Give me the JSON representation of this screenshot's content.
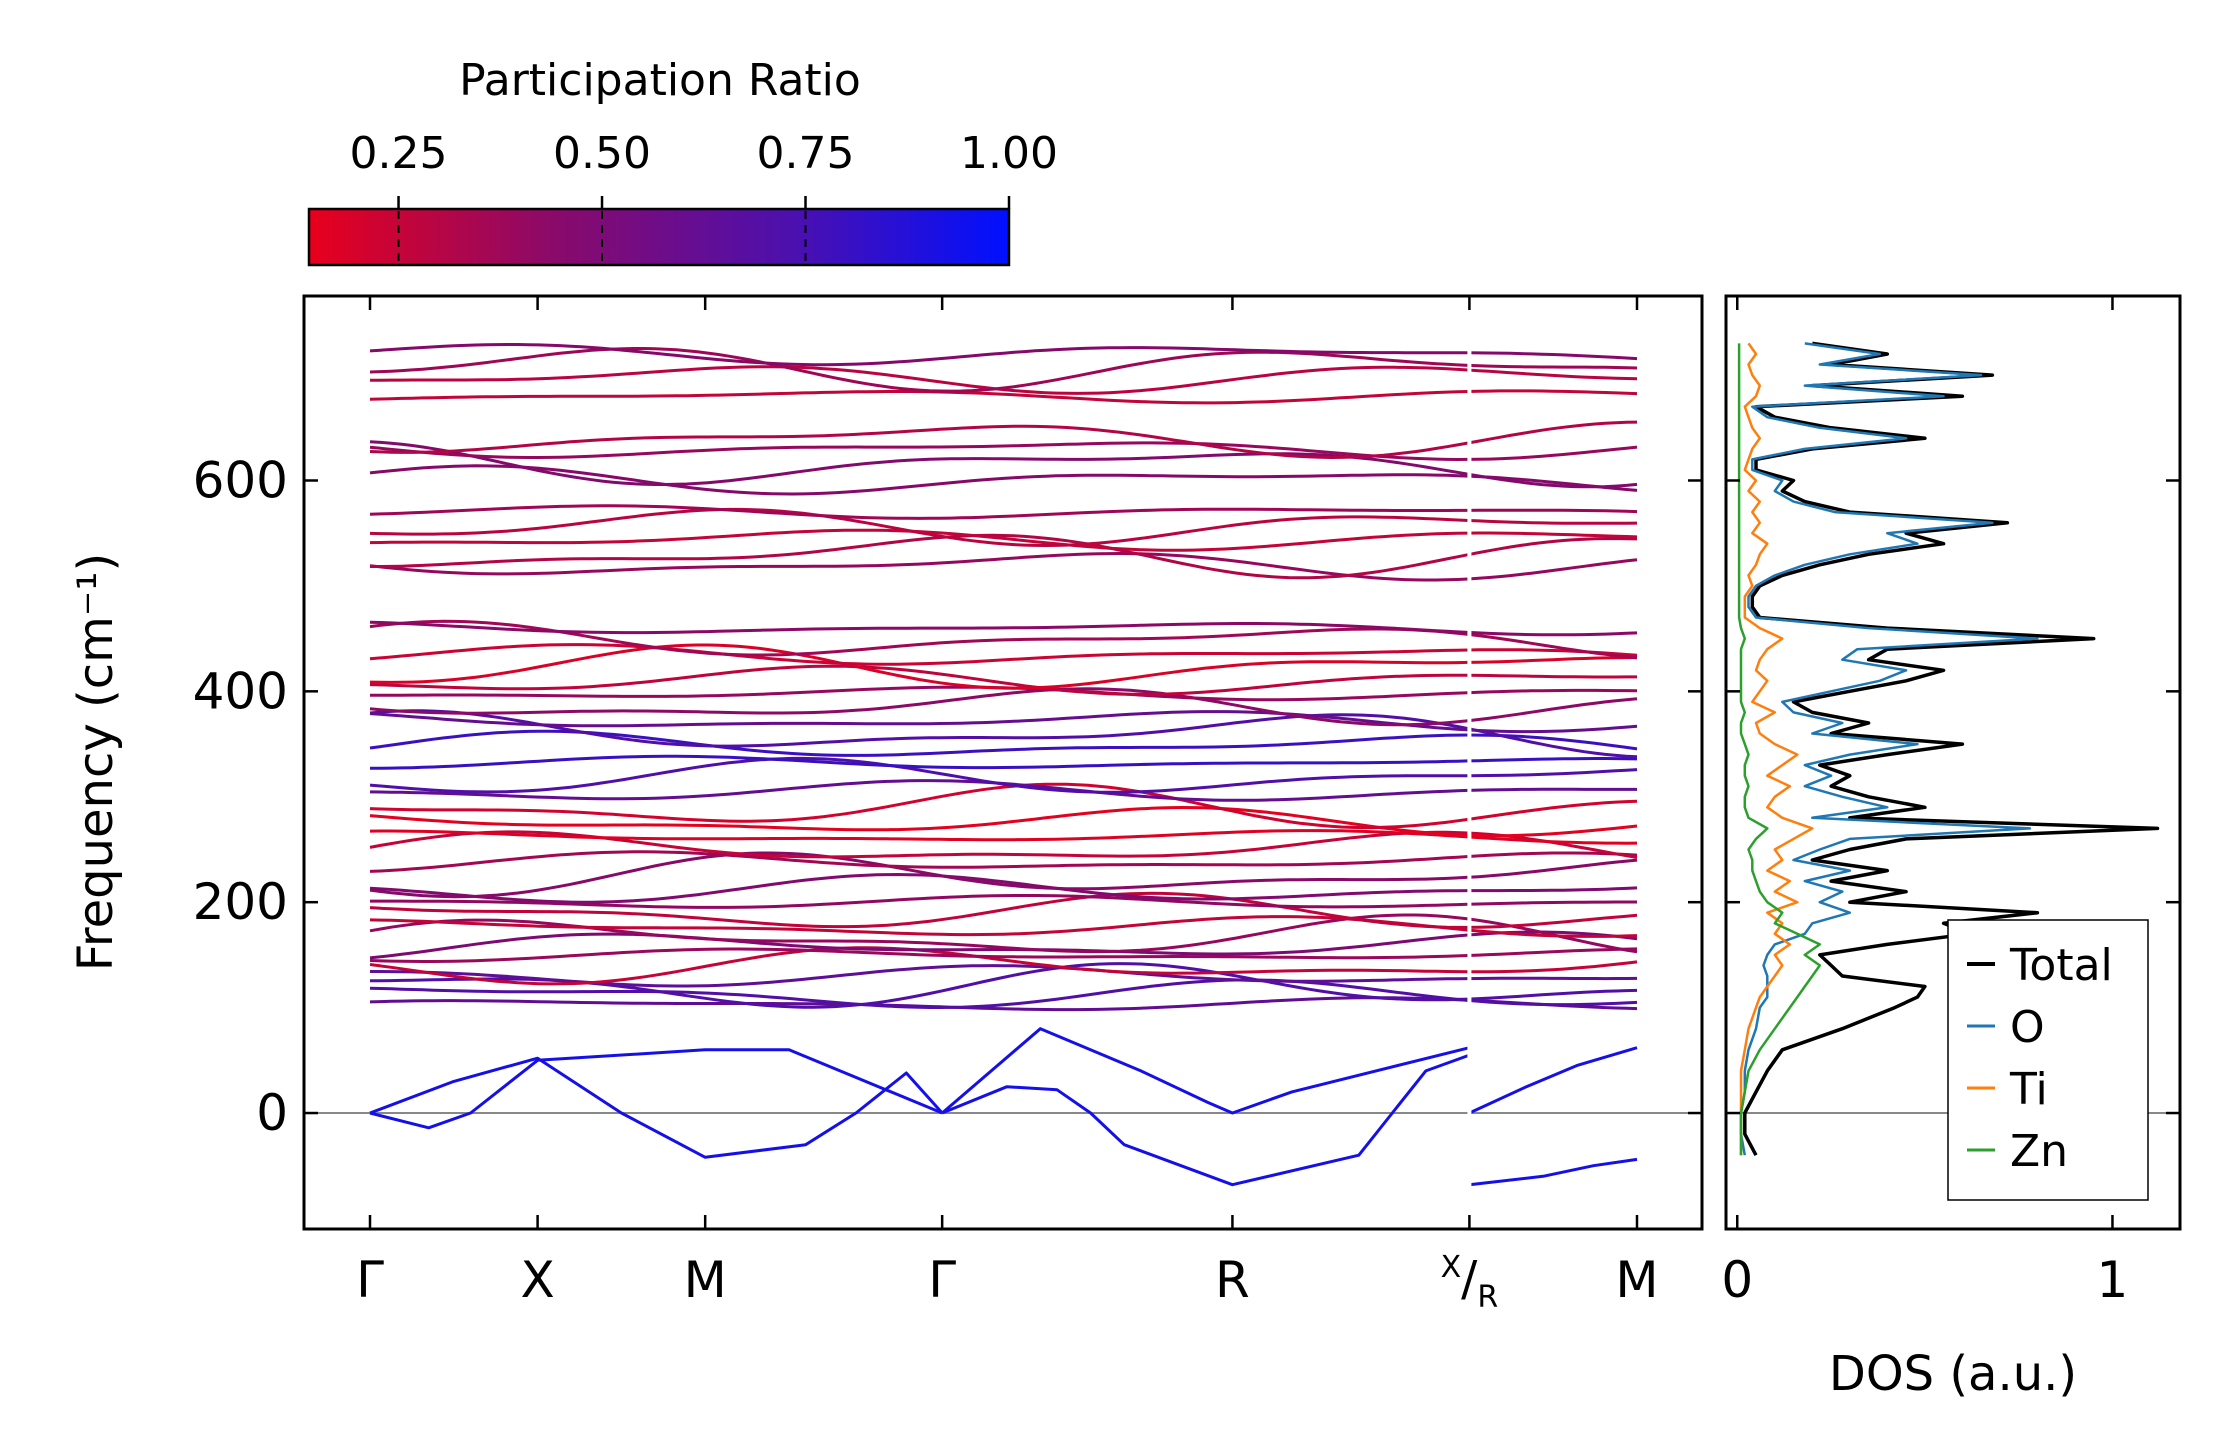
{
  "chart_data": [
    {
      "type": "line",
      "subtype": "phonon-band-structure",
      "ylabel": "Frequency (cm⁻¹)",
      "ylim": [
        -110,
        775
      ],
      "yticks": [
        0,
        200,
        400,
        600
      ],
      "ytick_labels": [
        "0",
        "200",
        "400",
        "600"
      ],
      "kpath": [
        {
          "label": "Γ",
          "pos": 0.0
        },
        {
          "label": "X",
          "pos": 1.0
        },
        {
          "label": "M",
          "pos": 2.0
        },
        {
          "label": "Γ",
          "pos": 3.414
        },
        {
          "label": "R",
          "pos": 5.146
        },
        {
          "label": "X/R",
          "pos": 6.56
        },
        {
          "label": "M",
          "pos": 7.56
        }
      ],
      "path_break_after": "X/R",
      "zero_line": 0,
      "color_mapping": "participation_ratio",
      "colorbar": {
        "title": "Participation Ratio",
        "range": [
          0.14,
          1.0
        ],
        "ticks": [
          0.25,
          0.5,
          0.75,
          1.0
        ],
        "tick_labels": [
          "0.25",
          "0.50",
          "0.75",
          "1.00"
        ],
        "low_color": "#e8001c",
        "mid_color": "#7a1080",
        "high_color": "#0010ff"
      },
      "optical_band_levels_at_gamma": [
        103,
        112,
        120,
        130,
        140,
        150,
        158,
        166,
        176,
        190,
        200,
        212,
        225,
        238,
        250,
        262,
        276,
        290,
        305,
        318,
        332,
        348,
        360,
        372,
        386,
        398,
        410,
        422,
        434,
        448,
        460,
        520,
        530,
        544,
        556,
        570,
        600,
        615,
        630,
        640,
        680,
        697,
        707,
        720
      ],
      "acoustic_branches": [
        {
          "name": "acoustic-1",
          "points": [
            [
              0,
              0
            ],
            [
              0.35,
              -14
            ],
            [
              0.6,
              0
            ],
            [
              1.0,
              50
            ],
            [
              2.0,
              60
            ],
            [
              2.5,
              60
            ],
            [
              3.414,
              0
            ]
          ]
        },
        {
          "name": "acoustic-2",
          "points": [
            [
              0,
              0
            ],
            [
              0.5,
              30
            ],
            [
              1.0,
              52
            ],
            [
              1.5,
              0
            ],
            [
              2.0,
              -42
            ],
            [
              2.6,
              -30
            ],
            [
              2.9,
              0
            ],
            [
              3.2,
              38
            ],
            [
              3.414,
              0
            ]
          ]
        },
        {
          "name": "acoustic-3",
          "points": [
            [
              3.414,
              0
            ],
            [
              3.8,
              25
            ],
            [
              4.1,
              22
            ],
            [
              4.3,
              0
            ],
            [
              4.5,
              -30
            ],
            [
              5.146,
              -68
            ],
            [
              5.9,
              -40
            ],
            [
              6.1,
              0
            ],
            [
              6.3,
              40
            ],
            [
              6.56,
              55
            ]
          ]
        },
        {
          "name": "acoustic-4",
          "points": [
            [
              3.414,
              0
            ],
            [
              4.0,
              80
            ],
            [
              4.6,
              40
            ],
            [
              5.0,
              10
            ],
            [
              5.146,
              0
            ],
            [
              5.5,
              20
            ],
            [
              6.56,
              62
            ]
          ]
        },
        {
          "name": "acoustic-5",
          "points": [
            [
              6.56,
              0
            ],
            [
              6.9,
              25
            ],
            [
              7.2,
              45
            ],
            [
              7.56,
              62
            ]
          ]
        },
        {
          "name": "acoustic-6",
          "points": [
            [
              6.56,
              -68
            ],
            [
              7.0,
              -60
            ],
            [
              7.3,
              -50
            ],
            [
              7.56,
              -44
            ]
          ]
        }
      ]
    },
    {
      "type": "line",
      "subtype": "density-of-states",
      "xlabel": "DOS (a.u.)",
      "xlim": [
        -0.03,
        1.18
      ],
      "xticks": [
        0,
        1
      ],
      "xtick_labels": [
        "0",
        "1"
      ],
      "ylim": [
        -110,
        775
      ],
      "y": [
        -40,
        -20,
        0,
        20,
        40,
        60,
        80,
        100,
        110,
        120,
        130,
        140,
        150,
        160,
        170,
        180,
        190,
        200,
        210,
        220,
        230,
        240,
        250,
        260,
        270,
        280,
        290,
        300,
        310,
        320,
        330,
        340,
        350,
        360,
        370,
        380,
        390,
        400,
        410,
        420,
        430,
        440,
        450,
        460,
        470,
        480,
        490,
        500,
        510,
        520,
        530,
        540,
        550,
        560,
        570,
        580,
        590,
        600,
        610,
        620,
        630,
        640,
        650,
        660,
        670,
        680,
        690,
        700,
        710,
        720,
        730
      ],
      "series": [
        {
          "name": "Total",
          "color": "#000000",
          "values": [
            0.05,
            0.02,
            0.02,
            0.05,
            0.08,
            0.12,
            0.28,
            0.42,
            0.48,
            0.5,
            0.28,
            0.25,
            0.22,
            0.4,
            0.62,
            0.55,
            0.8,
            0.3,
            0.45,
            0.25,
            0.4,
            0.2,
            0.3,
            0.45,
            1.12,
            0.3,
            0.5,
            0.35,
            0.25,
            0.3,
            0.22,
            0.4,
            0.6,
            0.25,
            0.35,
            0.2,
            0.15,
            0.3,
            0.45,
            0.55,
            0.35,
            0.4,
            0.95,
            0.4,
            0.06,
            0.04,
            0.04,
            0.06,
            0.12,
            0.22,
            0.35,
            0.55,
            0.45,
            0.72,
            0.3,
            0.18,
            0.12,
            0.15,
            0.05,
            0.05,
            0.2,
            0.5,
            0.25,
            0.1,
            0.05,
            0.6,
            0.2,
            0.68,
            0.25,
            0.4,
            0.2
          ]
        },
        {
          "name": "O",
          "color": "#1f77b4",
          "values": [
            0.02,
            0.01,
            0.01,
            0.02,
            0.02,
            0.03,
            0.05,
            0.06,
            0.08,
            0.08,
            0.08,
            0.07,
            0.08,
            0.1,
            0.18,
            0.2,
            0.3,
            0.22,
            0.28,
            0.18,
            0.3,
            0.15,
            0.22,
            0.3,
            0.78,
            0.2,
            0.4,
            0.28,
            0.18,
            0.25,
            0.18,
            0.3,
            0.48,
            0.2,
            0.28,
            0.15,
            0.12,
            0.25,
            0.38,
            0.45,
            0.28,
            0.32,
            0.8,
            0.35,
            0.05,
            0.03,
            0.03,
            0.05,
            0.1,
            0.18,
            0.3,
            0.48,
            0.4,
            0.68,
            0.26,
            0.15,
            0.1,
            0.12,
            0.04,
            0.04,
            0.18,
            0.45,
            0.22,
            0.08,
            0.04,
            0.55,
            0.18,
            0.65,
            0.22,
            0.38,
            0.18
          ]
        },
        {
          "name": "Ti",
          "color": "#ff7f0e",
          "values": [
            0.01,
            0.01,
            0.01,
            0.01,
            0.01,
            0.02,
            0.03,
            0.05,
            0.06,
            0.08,
            0.1,
            0.12,
            0.1,
            0.14,
            0.1,
            0.12,
            0.08,
            0.16,
            0.1,
            0.14,
            0.08,
            0.12,
            0.1,
            0.15,
            0.2,
            0.12,
            0.08,
            0.1,
            0.14,
            0.08,
            0.12,
            0.16,
            0.1,
            0.06,
            0.05,
            0.1,
            0.04,
            0.06,
            0.08,
            0.05,
            0.06,
            0.08,
            0.12,
            0.06,
            0.02,
            0.02,
            0.02,
            0.04,
            0.03,
            0.05,
            0.06,
            0.08,
            0.04,
            0.06,
            0.04,
            0.06,
            0.03,
            0.05,
            0.02,
            0.03,
            0.04,
            0.06,
            0.04,
            0.03,
            0.02,
            0.05,
            0.06,
            0.04,
            0.03,
            0.05,
            0.03
          ]
        },
        {
          "name": "Zn",
          "color": "#2ca02c",
          "values": [
            0.01,
            0.01,
            0.01,
            0.02,
            0.03,
            0.06,
            0.1,
            0.14,
            0.16,
            0.18,
            0.2,
            0.22,
            0.18,
            0.22,
            0.16,
            0.1,
            0.12,
            0.08,
            0.06,
            0.05,
            0.04,
            0.04,
            0.03,
            0.05,
            0.08,
            0.03,
            0.02,
            0.02,
            0.03,
            0.02,
            0.02,
            0.03,
            0.02,
            0.01,
            0.01,
            0.02,
            0.01,
            0.01,
            0.01,
            0.01,
            0.01,
            0.01,
            0.02,
            0.01,
            0.005,
            0.005,
            0.005,
            0.005,
            0.005,
            0.005,
            0.005,
            0.005,
            0.005,
            0.005,
            0.005,
            0.005,
            0.005,
            0.005,
            0.005,
            0.005,
            0.005,
            0.005,
            0.005,
            0.005,
            0.005,
            0.005,
            0.005,
            0.005,
            0.005,
            0.005,
            0.005
          ]
        }
      ],
      "legend": {
        "placement": "lower-right",
        "entries": [
          "Total",
          "O",
          "Ti",
          "Zn"
        ]
      }
    }
  ]
}
